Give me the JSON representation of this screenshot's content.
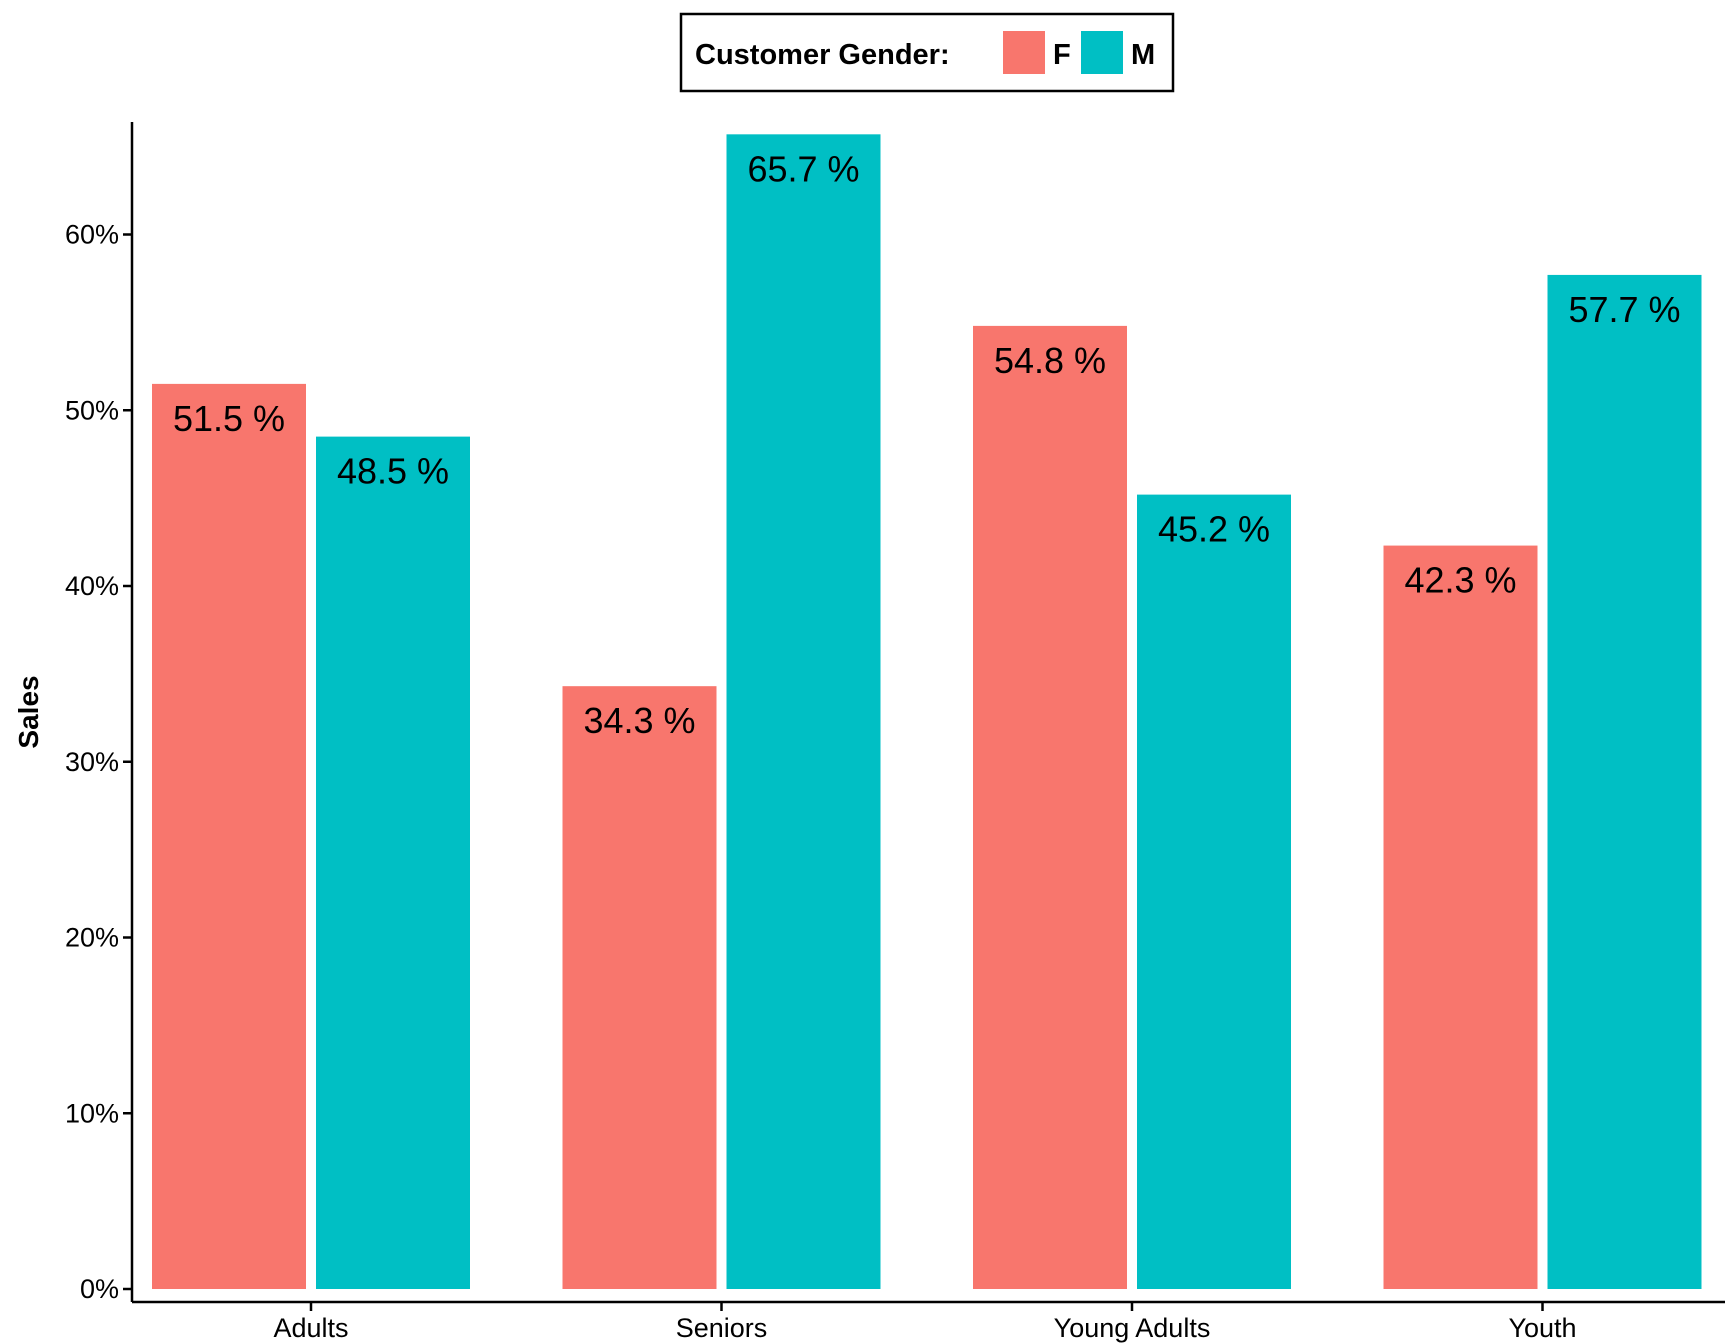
{
  "chart_data": {
    "type": "bar",
    "categories": [
      "Adults",
      "Seniors",
      "Young Adults",
      "Youth"
    ],
    "series": [
      {
        "name": "F",
        "color": "#F8766D",
        "values": [
          51.5,
          34.3,
          54.8,
          42.3
        ],
        "labels": [
          "51.5 %",
          "34.3 %",
          "54.8 %",
          "42.3 %"
        ]
      },
      {
        "name": "M",
        "color": "#00BFC4",
        "values": [
          48.5,
          65.7,
          45.2,
          57.7
        ],
        "labels": [
          "48.5 %",
          "65.7 %",
          "45.2 %",
          "57.7 %"
        ]
      }
    ],
    "xlabel": "",
    "ylabel": "Sales",
    "ylim": [
      0,
      66
    ],
    "yticks": [
      0,
      10,
      20,
      30,
      40,
      50,
      60
    ],
    "ytick_labels": [
      "0%",
      "10%",
      "20%",
      "30%",
      "40%",
      "50%",
      "60%"
    ],
    "legend": {
      "title": "Customer Gender:",
      "position": "top"
    },
    "grid": false
  }
}
